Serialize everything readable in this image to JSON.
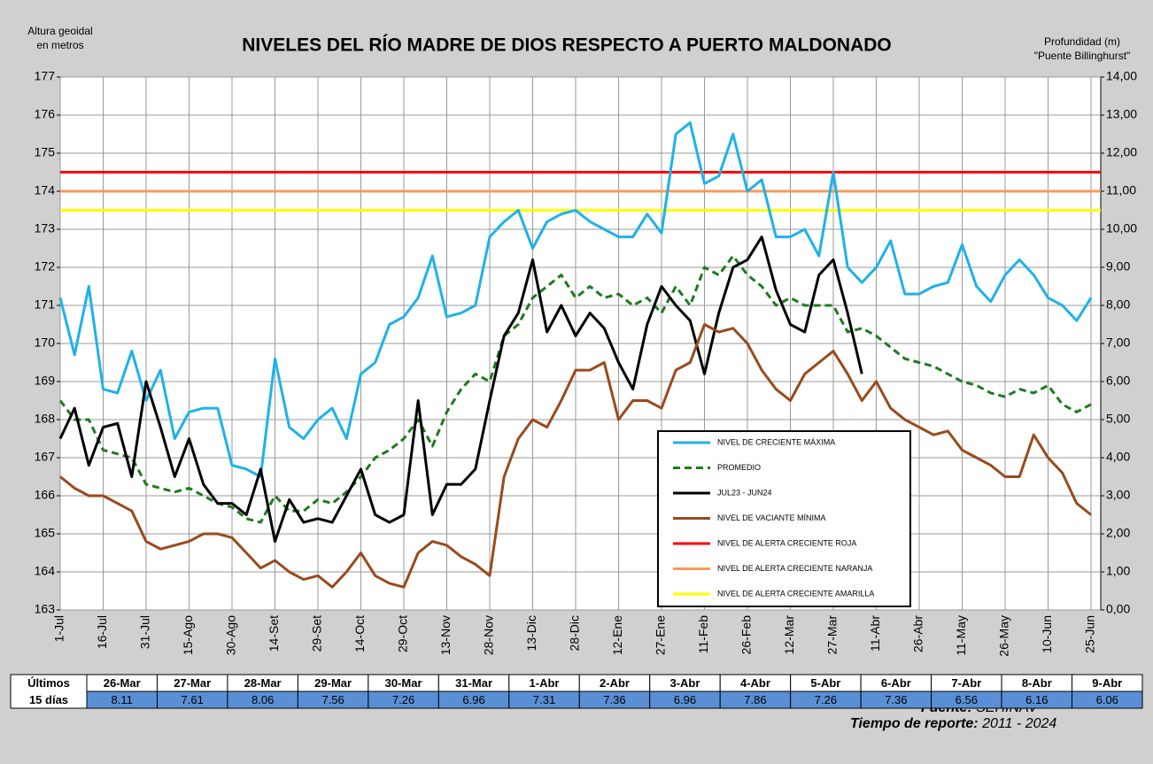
{
  "chart_data": {
    "type": "line",
    "title": "NIVELES DEL RÍO MADRE DE DIOS RESPECTO A PUERTO MALDONADO",
    "y_label": [
      "Altura geoidal",
      "en metros"
    ],
    "y2_label": [
      "Profundidad (m)",
      "\"Puente Billinghurst\""
    ],
    "categories": [
      "1-Jul",
      null,
      null,
      "16-Jul",
      null,
      null,
      "31-Jul",
      null,
      null,
      "15-Ago",
      null,
      null,
      "30-Ago",
      null,
      null,
      "14-Set",
      null,
      null,
      "29-Set",
      null,
      null,
      "14-Oct",
      null,
      null,
      "29-Oct",
      null,
      null,
      "13-Nov",
      null,
      null,
      "28-Nov",
      null,
      null,
      "13-Dic",
      null,
      null,
      "28-Dic",
      null,
      null,
      "12-Ene",
      null,
      null,
      "27-Ene",
      null,
      null,
      "11-Feb",
      null,
      null,
      "26-Feb",
      null,
      null,
      "12-Mar",
      null,
      null,
      "27-Mar",
      null,
      null,
      "11-Abr",
      null,
      null,
      "26-Abr",
      null,
      null,
      "11-May",
      null,
      null,
      "26-May",
      null,
      null,
      "10-Jun",
      null,
      null,
      "25-Jun"
    ],
    "series": [
      {
        "name": "NIVEL DE CRECIENTE MÁXIMA",
        "color": "#1fb1ea",
        "line_style": "solid",
        "values": [
          171.2,
          169.7,
          171.5,
          168.8,
          168.7,
          169.8,
          168.5,
          169.3,
          167.5,
          168.2,
          168.3,
          168.3,
          166.8,
          166.7,
          166.5,
          169.6,
          167.8,
          167.5,
          168.0,
          168.3,
          167.5,
          169.2,
          169.5,
          170.5,
          170.7,
          171.2,
          172.3,
          170.7,
          170.8,
          171.0,
          172.8,
          173.2,
          173.5,
          172.5,
          173.2,
          173.4,
          173.5,
          173.2,
          173.0,
          172.8,
          172.8,
          173.4,
          172.9,
          175.5,
          175.8,
          174.2,
          174.4,
          175.5,
          174.0,
          174.3,
          172.8,
          172.8,
          173.0,
          172.3,
          174.5,
          172.0,
          171.6,
          172.0,
          172.7,
          171.3,
          171.3,
          171.5,
          171.6,
          172.6,
          171.5,
          171.1,
          171.8,
          172.2,
          171.8,
          171.2,
          171.0,
          170.6,
          171.2
        ]
      },
      {
        "name": "PROMEDIO",
        "color": "#1e7a1e",
        "line_style": "dashed",
        "values": [
          168.5,
          168.0,
          168.0,
          167.2,
          167.1,
          167.0,
          166.3,
          166.2,
          166.1,
          166.2,
          166.0,
          165.8,
          165.7,
          165.4,
          165.3,
          166.0,
          165.6,
          165.6,
          165.9,
          165.8,
          166.1,
          166.5,
          167.0,
          167.2,
          167.5,
          168.0,
          167.3,
          168.2,
          168.8,
          169.2,
          169.0,
          170.2,
          170.5,
          171.2,
          171.5,
          171.8,
          171.2,
          171.5,
          171.2,
          171.3,
          171.0,
          171.2,
          170.8,
          171.5,
          171.0,
          172.0,
          171.8,
          172.3,
          171.8,
          171.5,
          171.0,
          171.2,
          171.0,
          171.0,
          171.0,
          170.3,
          170.4,
          170.2,
          169.9,
          169.6,
          169.5,
          169.4,
          169.2,
          169.0,
          168.9,
          168.7,
          168.6,
          168.8,
          168.7,
          168.9,
          168.4,
          168.2,
          168.4
        ]
      },
      {
        "name": "JUL23 - JUN24",
        "color": "#000000",
        "line_style": "solid",
        "values": [
          167.5,
          168.3,
          166.8,
          167.8,
          167.9,
          166.5,
          169.0,
          167.8,
          166.5,
          167.5,
          166.3,
          165.8,
          165.8,
          165.5,
          166.7,
          164.8,
          165.9,
          165.3,
          165.4,
          165.3,
          166.0,
          166.7,
          165.5,
          165.3,
          165.5,
          168.5,
          165.5,
          166.3,
          166.3,
          166.7,
          168.5,
          170.2,
          170.8,
          172.2,
          170.3,
          171.0,
          170.2,
          170.8,
          170.4,
          169.5,
          168.8,
          170.5,
          171.5,
          171.0,
          170.6,
          169.2,
          170.8,
          172.0,
          172.2,
          172.8,
          171.4,
          170.5,
          170.3,
          171.8,
          172.2,
          170.8,
          169.2,
          null,
          null,
          null,
          null,
          null,
          null,
          null,
          null,
          null,
          null,
          null,
          null,
          null,
          null,
          null,
          null
        ]
      },
      {
        "name": "NIVEL DE VACIANTE MÍNIMA",
        "color": "#9a4a1c",
        "line_style": "solid",
        "values": [
          166.5,
          166.2,
          166.0,
          166.0,
          165.8,
          165.6,
          164.8,
          164.6,
          164.7,
          164.8,
          165.0,
          165.0,
          164.9,
          164.5,
          164.1,
          164.3,
          164.0,
          163.8,
          163.9,
          163.6,
          164.0,
          164.5,
          163.9,
          163.7,
          163.6,
          164.5,
          164.8,
          164.7,
          164.4,
          164.2,
          163.9,
          166.5,
          167.5,
          168.0,
          167.8,
          168.5,
          169.3,
          169.3,
          169.5,
          168.0,
          168.5,
          168.5,
          168.3,
          169.3,
          169.5,
          170.5,
          170.3,
          170.4,
          170.0,
          169.3,
          168.8,
          168.5,
          169.2,
          169.5,
          169.8,
          169.2,
          168.5,
          169.0,
          168.3,
          168.0,
          167.8,
          167.6,
          167.7,
          167.2,
          167.0,
          166.8,
          166.5,
          166.5,
          167.6,
          167.0,
          166.6,
          165.8,
          165.5
        ]
      }
    ],
    "reference_lines": [
      {
        "name": "NIVEL DE ALERTA CRECIENTE ROJA",
        "color": "#ff0000",
        "value": 174.5
      },
      {
        "name": "NIVEL DE ALERTA CRECIENTE NARANJA",
        "color": "#f79a5a",
        "value": 174
      },
      {
        "name": "NIVEL DE ALERTA CRECIENTE AMARILLA",
        "color": "#ffff00",
        "value": 173.5
      }
    ],
    "ylim": [
      163,
      177
    ],
    "yticks": [
      163,
      164,
      165,
      166,
      167,
      168,
      169,
      170,
      171,
      172,
      173,
      174,
      175,
      176,
      177
    ],
    "y2lim": [
      0,
      14
    ],
    "y2ticks": [
      {
        "value": 0,
        "label": "0,00"
      },
      {
        "value": 1,
        "label": "1,00"
      },
      {
        "value": 2,
        "label": "2,00"
      },
      {
        "value": 3,
        "label": "3,00"
      },
      {
        "value": 4,
        "label": "4,00"
      },
      {
        "value": 5,
        "label": "5,00"
      },
      {
        "value": 6,
        "label": "6,00"
      },
      {
        "value": 7,
        "label": "7,00"
      },
      {
        "value": 8,
        "label": "8,00"
      },
      {
        "value": 9,
        "label": "9,00"
      },
      {
        "value": 10,
        "label": "10,00"
      },
      {
        "value": 11,
        "label": "11,00"
      },
      {
        "value": 12,
        "label": "12,00"
      },
      {
        "value": 13,
        "label": "13,00"
      },
      {
        "value": 14,
        "label": "14,00"
      }
    ],
    "grid": true
  },
  "table": {
    "header": [
      "Últimos",
      "15 días"
    ],
    "dates": [
      "26-Mar",
      "27-Mar",
      "28-Mar",
      "29-Mar",
      "30-Mar",
      "31-Mar",
      "1-Abr",
      "2-Abr",
      "3-Abr",
      "4-Abr",
      "5-Abr",
      "6-Abr",
      "7-Abr",
      "8-Abr",
      "9-Abr"
    ],
    "values": [
      8.11,
      7.61,
      8.06,
      7.56,
      7.26,
      6.96,
      7.31,
      7.36,
      6.96,
      7.86,
      7.26,
      7.36,
      6.56,
      6.16,
      6.06
    ]
  },
  "footer": {
    "source_label": "Fuente:",
    "source": "SEHINAV",
    "period_label": "Tiempo de reporte:",
    "period": "2011 - 2024"
  }
}
